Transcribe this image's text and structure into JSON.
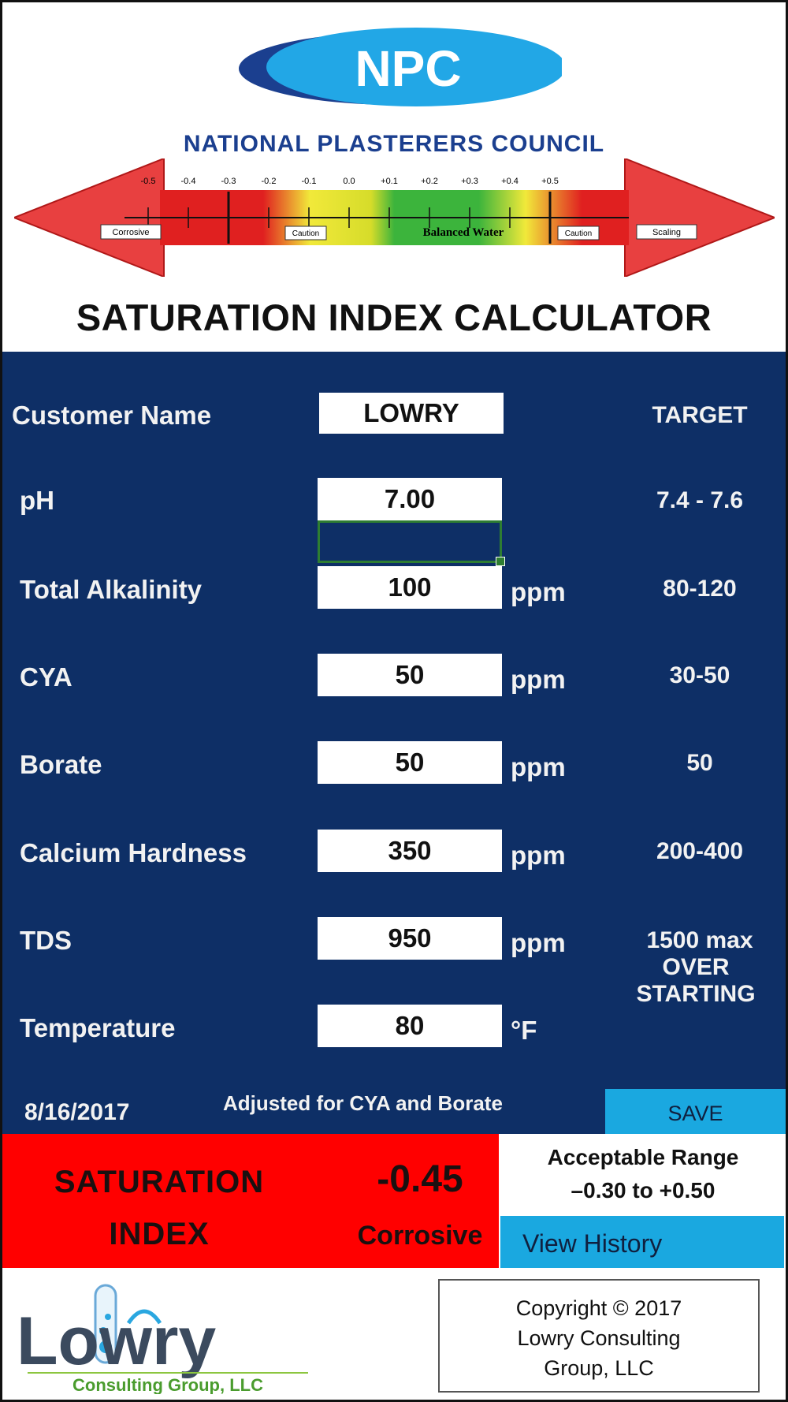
{
  "header": {
    "logo_text": "NPC",
    "council_name": "NATIONAL PLASTERERS COUNCIL",
    "title": "SATURATION INDEX CALCULATOR",
    "scale": {
      "ticks": [
        "-0.5",
        "-0.4",
        "-0.3",
        "-0.2",
        "-0.1",
        "0.0",
        "+0.1",
        "+0.2",
        "+0.3",
        "+0.4",
        "+0.5"
      ],
      "corrosive_label": "Corrosive",
      "scaling_label": "Scaling",
      "caution_label": "Caution",
      "balanced_label": "Balanced Water"
    }
  },
  "form": {
    "customer": {
      "label": "Customer Name",
      "value": "LOWRY"
    },
    "target_header": "TARGET",
    "rows": [
      {
        "label": "pH",
        "value": "7.00",
        "unit": "",
        "target": "7.4 - 7.6"
      },
      {
        "label": "Total Alkalinity",
        "value": "100",
        "unit": "ppm",
        "target": "80-120"
      },
      {
        "label": "CYA",
        "value": "50",
        "unit": "ppm",
        "target": "30-50"
      },
      {
        "label": "Borate",
        "value": "50",
        "unit": "ppm",
        "target": "50"
      },
      {
        "label": "Calcium Hardness",
        "value": "350",
        "unit": "ppm",
        "target": "200-400"
      },
      {
        "label": "TDS",
        "value": "950",
        "unit": "ppm",
        "target": "1500 max",
        "target_note_1": "OVER",
        "target_note_2": "STARTING"
      },
      {
        "label": "Temperature",
        "value": "80",
        "unit": "°F",
        "target": ""
      }
    ],
    "date": "8/16/2017",
    "adjusted_note": "Adjusted for CYA and Borate",
    "save_label": "SAVE"
  },
  "result": {
    "label_line1": "SATURATION",
    "label_line2": "INDEX",
    "value": "-0.45",
    "status": "Corrosive",
    "range_title": "Acceptable Range",
    "range_values": "–0.30 to +0.50",
    "history_label": "View History"
  },
  "footer": {
    "logo_brand": "Lowry",
    "logo_sub": "Consulting Group, LLC",
    "copyright_line1": "Copyright © 2017",
    "copyright_line2": "Lowry Consulting",
    "copyright_line3": "Group, LLC"
  },
  "colors": {
    "panel_blue": "#0e2f66",
    "button_blue": "#1aa8e0",
    "corrosive_red": "#ff0000",
    "npc_blue": "#1b3f8f"
  }
}
